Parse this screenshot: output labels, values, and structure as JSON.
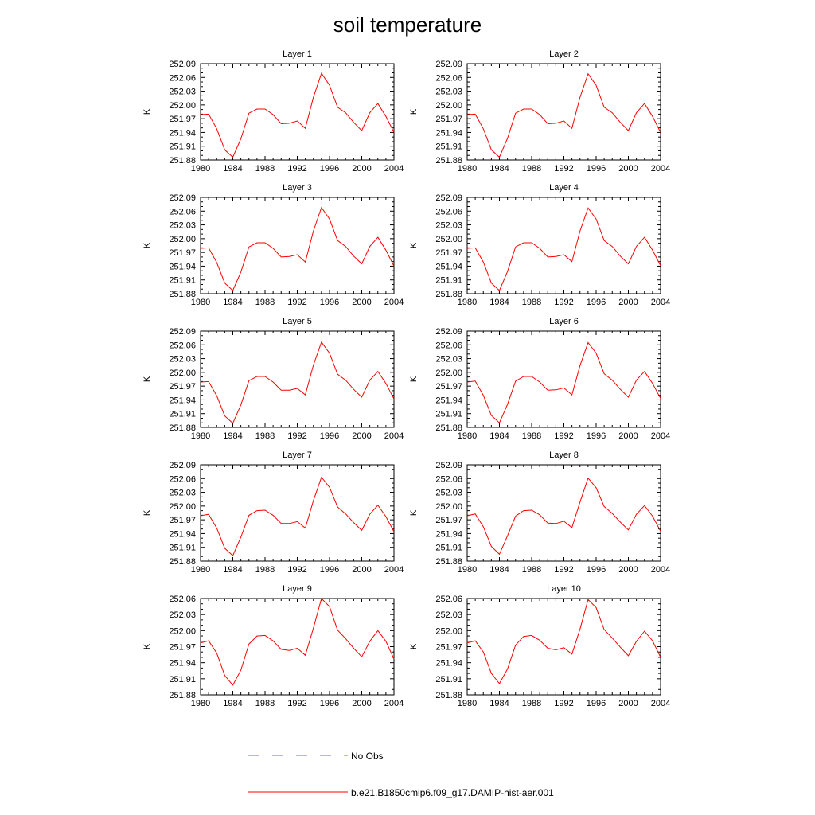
{
  "figure": {
    "title": "soil temperature"
  },
  "legend": {
    "entries": [
      {
        "label": "No Obs",
        "color": "#6b6bd8",
        "style": "dashed"
      },
      {
        "label": "b.e21.B1850cmip6.f09_g17.DAMIP-hist-aer.001",
        "color": "#ff0000",
        "style": "solid"
      }
    ]
  },
  "chart_data": [
    {
      "type": "line",
      "title": "Layer 1",
      "ylabel": "K",
      "xlim": [
        1980,
        2004
      ],
      "ylim": [
        251.88,
        252.09
      ],
      "xticks": [
        1980,
        1984,
        1988,
        1992,
        1996,
        2000,
        2004
      ],
      "yticks": [
        "251.88",
        "251.91",
        "251.94",
        "251.97",
        "252.00",
        "252.03",
        "252.06",
        "252.09"
      ],
      "x": [
        1980,
        1981,
        1982,
        1983,
        1984,
        1985,
        1986,
        1987,
        1988,
        1989,
        1990,
        1991,
        1992,
        1993,
        1994,
        1995,
        1996,
        1997,
        1998,
        1999,
        2000,
        2001,
        2002,
        2003,
        2004
      ],
      "series": [
        {
          "name": "b.e21.B1850cmip6.f09_g17.DAMIP-hist-aer.001",
          "color": "#ff0000",
          "values": [
            251.979,
            251.98,
            251.948,
            251.902,
            251.886,
            251.926,
            251.982,
            251.991,
            251.991,
            251.979,
            251.959,
            251.96,
            251.965,
            251.949,
            252.017,
            252.069,
            252.043,
            251.995,
            251.983,
            251.962,
            251.944,
            251.983,
            252.003,
            251.975,
            251.94
          ]
        }
      ]
    },
    {
      "type": "line",
      "title": "Layer 2",
      "ylabel": "K",
      "xlim": [
        1980,
        2004
      ],
      "ylim": [
        251.88,
        252.09
      ],
      "xticks": [
        1980,
        1984,
        1988,
        1992,
        1996,
        2000,
        2004
      ],
      "yticks": [
        "251.88",
        "251.91",
        "251.94",
        "251.97",
        "252.00",
        "252.03",
        "252.06",
        "252.09"
      ],
      "x": [
        1980,
        1981,
        1982,
        1983,
        1984,
        1985,
        1986,
        1987,
        1988,
        1989,
        1990,
        1991,
        1992,
        1993,
        1994,
        1995,
        1996,
        1997,
        1998,
        1999,
        2000,
        2001,
        2002,
        2003,
        2004
      ],
      "series": [
        {
          "name": "b.e21.B1850cmip6.f09_g17.DAMIP-hist-aer.001",
          "color": "#ff0000",
          "values": [
            251.979,
            251.98,
            251.948,
            251.902,
            251.886,
            251.927,
            251.982,
            251.991,
            251.991,
            251.979,
            251.959,
            251.96,
            251.965,
            251.949,
            252.017,
            252.068,
            252.043,
            251.995,
            251.983,
            251.962,
            251.944,
            251.983,
            252.003,
            251.975,
            251.94
          ]
        }
      ]
    },
    {
      "type": "line",
      "title": "Layer 3",
      "ylabel": "K",
      "xlim": [
        1980,
        2004
      ],
      "ylim": [
        251.88,
        252.09
      ],
      "xticks": [
        1980,
        1984,
        1988,
        1992,
        1996,
        2000,
        2004
      ],
      "yticks": [
        "251.88",
        "251.91",
        "251.94",
        "251.97",
        "252.00",
        "252.03",
        "252.06",
        "252.09"
      ],
      "x": [
        1980,
        1981,
        1982,
        1983,
        1984,
        1985,
        1986,
        1987,
        1988,
        1989,
        1990,
        1991,
        1992,
        1993,
        1994,
        1995,
        1996,
        1997,
        1998,
        1999,
        2000,
        2001,
        2002,
        2003,
        2004
      ],
      "series": [
        {
          "name": "b.e21.B1850cmip6.f09_g17.DAMIP-hist-aer.001",
          "color": "#ff0000",
          "values": [
            251.979,
            251.98,
            251.948,
            251.903,
            251.887,
            251.927,
            251.982,
            251.991,
            251.991,
            251.979,
            251.96,
            251.961,
            251.965,
            251.949,
            252.017,
            252.068,
            252.043,
            251.996,
            251.983,
            251.962,
            251.945,
            251.983,
            252.003,
            251.975,
            251.94
          ]
        }
      ]
    },
    {
      "type": "line",
      "title": "Layer 4",
      "ylabel": "K",
      "xlim": [
        1980,
        2004
      ],
      "ylim": [
        251.88,
        252.09
      ],
      "xticks": [
        1980,
        1984,
        1988,
        1992,
        1996,
        2000,
        2004
      ],
      "yticks": [
        "251.88",
        "251.91",
        "251.94",
        "251.97",
        "252.00",
        "252.03",
        "252.06",
        "252.09"
      ],
      "x": [
        1980,
        1981,
        1982,
        1983,
        1984,
        1985,
        1986,
        1987,
        1988,
        1989,
        1990,
        1991,
        1992,
        1993,
        1994,
        1995,
        1996,
        1997,
        1998,
        1999,
        2000,
        2001,
        2002,
        2003,
        2004
      ],
      "series": [
        {
          "name": "b.e21.B1850cmip6.f09_g17.DAMIP-hist-aer.001",
          "color": "#ff0000",
          "values": [
            251.979,
            251.98,
            251.949,
            251.903,
            251.887,
            251.928,
            251.982,
            251.991,
            251.991,
            251.979,
            251.96,
            251.961,
            251.965,
            251.95,
            252.017,
            252.067,
            252.043,
            251.996,
            251.983,
            251.962,
            251.945,
            251.983,
            252.003,
            251.975,
            251.941
          ]
        }
      ]
    },
    {
      "type": "line",
      "title": "Layer 5",
      "ylabel": "K",
      "xlim": [
        1980,
        2004
      ],
      "ylim": [
        251.88,
        252.09
      ],
      "xticks": [
        1980,
        1984,
        1988,
        1992,
        1996,
        2000,
        2004
      ],
      "yticks": [
        "251.88",
        "251.91",
        "251.94",
        "251.97",
        "252.00",
        "252.03",
        "252.06",
        "252.09"
      ],
      "x": [
        1980,
        1981,
        1982,
        1983,
        1984,
        1985,
        1986,
        1987,
        1988,
        1989,
        1990,
        1991,
        1992,
        1993,
        1994,
        1995,
        1996,
        1997,
        1998,
        1999,
        2000,
        2001,
        2002,
        2003,
        2004
      ],
      "series": [
        {
          "name": "b.e21.B1850cmip6.f09_g17.DAMIP-hist-aer.001",
          "color": "#ff0000",
          "values": [
            251.979,
            251.98,
            251.949,
            251.905,
            251.889,
            251.929,
            251.982,
            251.991,
            251.991,
            251.979,
            251.961,
            251.961,
            251.965,
            251.951,
            252.016,
            252.066,
            252.042,
            251.996,
            251.983,
            251.963,
            251.946,
            251.983,
            252.002,
            251.976,
            251.942
          ]
        }
      ]
    },
    {
      "type": "line",
      "title": "Layer 6",
      "ylabel": "K",
      "xlim": [
        1980,
        2004
      ],
      "ylim": [
        251.88,
        252.09
      ],
      "xticks": [
        1980,
        1984,
        1988,
        1992,
        1996,
        2000,
        2004
      ],
      "yticks": [
        "251.88",
        "251.91",
        "251.94",
        "251.97",
        "252.00",
        "252.03",
        "252.06",
        "252.09"
      ],
      "x": [
        1980,
        1981,
        1982,
        1983,
        1984,
        1985,
        1986,
        1987,
        1988,
        1989,
        1990,
        1991,
        1992,
        1993,
        1994,
        1995,
        1996,
        1997,
        1998,
        1999,
        2000,
        2001,
        2002,
        2003,
        2004
      ],
      "series": [
        {
          "name": "b.e21.B1850cmip6.f09_g17.DAMIP-hist-aer.001",
          "color": "#ff0000",
          "values": [
            251.979,
            251.981,
            251.95,
            251.906,
            251.89,
            251.93,
            251.981,
            251.991,
            251.991,
            251.979,
            251.961,
            251.962,
            251.966,
            251.951,
            252.015,
            252.065,
            252.042,
            251.997,
            251.983,
            251.963,
            251.946,
            251.983,
            252.002,
            251.976,
            251.943
          ]
        }
      ]
    },
    {
      "type": "line",
      "title": "Layer 7",
      "ylabel": "K",
      "xlim": [
        1980,
        2004
      ],
      "ylim": [
        251.88,
        252.09
      ],
      "xticks": [
        1980,
        1984,
        1988,
        1992,
        1996,
        2000,
        2004
      ],
      "yticks": [
        "251.88",
        "251.91",
        "251.94",
        "251.97",
        "252.00",
        "252.03",
        "252.06",
        "252.09"
      ],
      "x": [
        1980,
        1981,
        1982,
        1983,
        1984,
        1985,
        1986,
        1987,
        1988,
        1989,
        1990,
        1991,
        1992,
        1993,
        1994,
        1995,
        1996,
        1997,
        1998,
        1999,
        2000,
        2001,
        2002,
        2003,
        2004
      ],
      "series": [
        {
          "name": "b.e21.B1850cmip6.f09_g17.DAMIP-hist-aer.001",
          "color": "#ff0000",
          "values": [
            251.979,
            251.982,
            251.952,
            251.908,
            251.892,
            251.932,
            251.98,
            251.99,
            251.991,
            251.98,
            251.962,
            251.962,
            251.966,
            251.952,
            252.012,
            252.063,
            252.041,
            251.998,
            251.983,
            251.964,
            251.947,
            251.982,
            252.002,
            251.977,
            251.944
          ]
        }
      ]
    },
    {
      "type": "line",
      "title": "Layer 8",
      "ylabel": "K",
      "xlim": [
        1980,
        2004
      ],
      "ylim": [
        251.88,
        252.09
      ],
      "xticks": [
        1980,
        1984,
        1988,
        1992,
        1996,
        2000,
        2004
      ],
      "yticks": [
        "251.88",
        "251.91",
        "251.94",
        "251.97",
        "252.00",
        "252.03",
        "252.06",
        "252.09"
      ],
      "x": [
        1980,
        1981,
        1982,
        1983,
        1984,
        1985,
        1986,
        1987,
        1988,
        1989,
        1990,
        1991,
        1992,
        1993,
        1994,
        1995,
        1996,
        1997,
        1998,
        1999,
        2000,
        2001,
        2002,
        2003,
        2004
      ],
      "series": [
        {
          "name": "b.e21.B1850cmip6.f09_g17.DAMIP-hist-aer.001",
          "color": "#ff0000",
          "values": [
            251.979,
            251.983,
            251.955,
            251.912,
            251.895,
            251.935,
            251.978,
            251.99,
            251.991,
            251.981,
            251.963,
            251.962,
            251.967,
            251.953,
            252.009,
            252.061,
            252.04,
            251.999,
            251.984,
            251.965,
            251.948,
            251.982,
            252.001,
            251.978,
            251.945
          ]
        }
      ]
    },
    {
      "type": "line",
      "title": "Layer 9",
      "ylabel": "K",
      "xlim": [
        1980,
        2004
      ],
      "ylim": [
        251.88,
        252.06
      ],
      "xticks": [
        1980,
        1984,
        1988,
        1992,
        1996,
        2000,
        2004
      ],
      "yticks": [
        "251.88",
        "251.91",
        "251.94",
        "251.97",
        "252.00",
        "252.03",
        "252.06"
      ],
      "x": [
        1980,
        1981,
        1982,
        1983,
        1984,
        1985,
        1986,
        1987,
        1988,
        1989,
        1990,
        1991,
        1992,
        1993,
        1994,
        1995,
        1996,
        1997,
        1998,
        1999,
        2000,
        2001,
        2002,
        2003,
        2004
      ],
      "series": [
        {
          "name": "b.e21.B1850cmip6.f09_g17.DAMIP-hist-aer.001",
          "color": "#ff0000",
          "values": [
            251.977,
            251.981,
            251.958,
            251.916,
            251.898,
            251.926,
            251.975,
            251.99,
            251.991,
            251.981,
            251.965,
            251.963,
            251.967,
            251.954,
            252.005,
            252.06,
            252.045,
            252.001,
            251.985,
            251.967,
            251.951,
            251.98,
            252.0,
            251.98,
            251.947
          ]
        }
      ]
    },
    {
      "type": "line",
      "title": "Layer 10",
      "ylabel": "K",
      "xlim": [
        1980,
        2004
      ],
      "ylim": [
        251.88,
        252.06
      ],
      "xticks": [
        1980,
        1984,
        1988,
        1992,
        1996,
        2000,
        2004
      ],
      "yticks": [
        "251.88",
        "251.91",
        "251.94",
        "251.97",
        "252.00",
        "252.03",
        "252.06"
      ],
      "x": [
        1980,
        1981,
        1982,
        1983,
        1984,
        1985,
        1986,
        1987,
        1988,
        1989,
        1990,
        1991,
        1992,
        1993,
        1994,
        1995,
        1996,
        1997,
        1998,
        1999,
        2000,
        2001,
        2002,
        2003,
        2004
      ],
      "series": [
        {
          "name": "b.e21.B1850cmip6.f09_g17.DAMIP-hist-aer.001",
          "color": "#ff0000",
          "values": [
            251.977,
            251.981,
            251.96,
            251.92,
            251.901,
            251.928,
            251.973,
            251.989,
            251.991,
            251.982,
            251.967,
            251.964,
            251.968,
            251.956,
            252.003,
            252.058,
            252.043,
            252.002,
            251.986,
            251.969,
            251.953,
            251.98,
            251.999,
            251.981,
            251.95
          ]
        }
      ]
    }
  ]
}
